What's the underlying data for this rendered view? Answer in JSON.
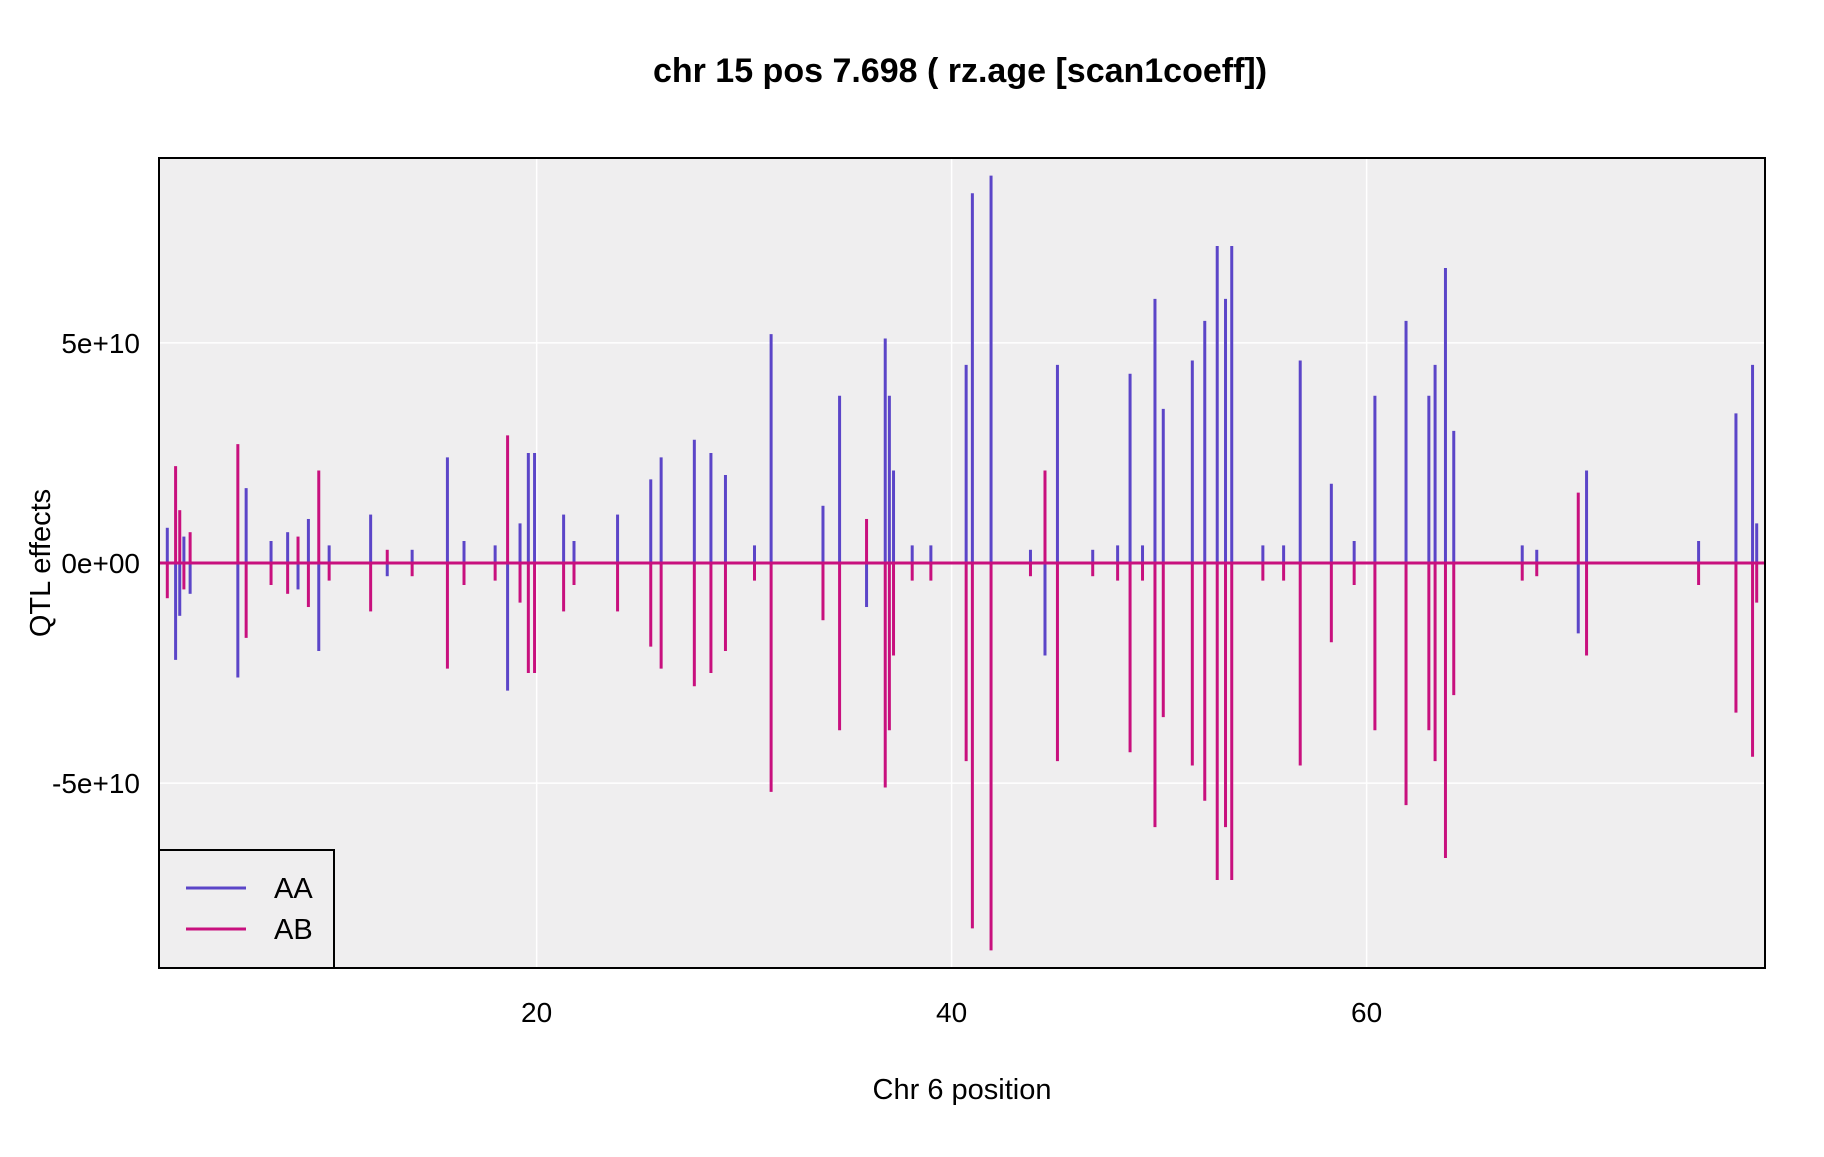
{
  "chart_data": {
    "type": "line",
    "title": "chr 15 pos 7.698 ( rz.age  [scan1coeff])",
    "xlabel": "Chr 6 position",
    "ylabel": "QTL effects",
    "xlim": [
      1.8,
      79.2
    ],
    "ylim": [
      -92000000000,
      92000000000
    ],
    "x_ticks": [
      {
        "value": 20,
        "label": "20"
      },
      {
        "value": 40,
        "label": "40"
      },
      {
        "value": 60,
        "label": "60"
      }
    ],
    "y_ticks": [
      {
        "value": 50000000000,
        "label": "5e+10"
      },
      {
        "value": 0,
        "label": "0e+00"
      },
      {
        "value": -50000000000,
        "label": "-5e+10"
      }
    ],
    "grid": true,
    "legend": {
      "position": "bottom-left"
    },
    "colors": {
      "AA": "#5b45c8",
      "AB": "#c8107e",
      "panel": "#efeeef",
      "grid": "#ffffff"
    },
    "series": [
      {
        "name": "AA",
        "spikes": [
          [
            2.2,
            8000000000.0
          ],
          [
            2.6,
            -22000000000.0
          ],
          [
            2.8,
            -12000000000.0
          ],
          [
            3.0,
            6000000000.0
          ],
          [
            3.3,
            -7000000000.0
          ],
          [
            5.6,
            -26000000000.0
          ],
          [
            6.0,
            17000000000.0
          ],
          [
            7.2,
            5000000000.0
          ],
          [
            8.0,
            7000000000.0
          ],
          [
            8.5,
            -6000000000.0
          ],
          [
            9.0,
            10000000000.0
          ],
          [
            9.5,
            -20000000000.0
          ],
          [
            10.0,
            4000000000.0
          ],
          [
            12.0,
            11000000000.0
          ],
          [
            12.8,
            -3000000000.0
          ],
          [
            14.0,
            3000000000.0
          ],
          [
            15.7,
            24000000000.0
          ],
          [
            16.5,
            5000000000.0
          ],
          [
            18.0,
            4000000000.0
          ],
          [
            18.6,
            -29000000000.0
          ],
          [
            19.2,
            9000000000.0
          ],
          [
            19.6,
            25000000000.0
          ],
          [
            19.9,
            25000000000.0
          ],
          [
            21.3,
            11000000000.0
          ],
          [
            21.8,
            5000000000.0
          ],
          [
            23.9,
            11000000000.0
          ],
          [
            25.5,
            19000000000.0
          ],
          [
            26.0,
            24000000000.0
          ],
          [
            27.6,
            28000000000.0
          ],
          [
            28.4,
            25000000000.0
          ],
          [
            29.1,
            20000000000.0
          ],
          [
            30.5,
            4000000000.0
          ],
          [
            31.3,
            52000000000.0
          ],
          [
            33.8,
            13000000000.0
          ],
          [
            34.6,
            38000000000.0
          ],
          [
            35.9,
            -10000000000.0
          ],
          [
            36.8,
            51000000000.0
          ],
          [
            37.0,
            38000000000.0
          ],
          [
            37.2,
            21000000000.0
          ],
          [
            38.1,
            4000000000.0
          ],
          [
            39.0,
            4000000000.0
          ],
          [
            40.7,
            45000000000.0
          ],
          [
            41.0,
            84000000000.0
          ],
          [
            41.9,
            88000000000.0
          ],
          [
            43.8,
            3000000000.0
          ],
          [
            44.5,
            -21000000000.0
          ],
          [
            45.1,
            45000000000.0
          ],
          [
            46.8,
            3000000000.0
          ],
          [
            48.0,
            4000000000.0
          ],
          [
            48.6,
            43000000000.0
          ],
          [
            49.2,
            4000000000.0
          ],
          [
            49.8,
            60000000000.0
          ],
          [
            50.2,
            35000000000.0
          ],
          [
            51.6,
            46000000000.0
          ],
          [
            52.2,
            55000000000.0
          ],
          [
            52.8,
            72000000000.0
          ],
          [
            53.2,
            60000000000.0
          ],
          [
            53.5,
            72000000000.0
          ],
          [
            55.0,
            4000000000.0
          ],
          [
            56.0,
            4000000000.0
          ],
          [
            56.8,
            46000000000.0
          ],
          [
            58.3,
            18000000000.0
          ],
          [
            59.4,
            5000000000.0
          ],
          [
            60.4,
            38000000000.0
          ],
          [
            61.9,
            55000000000.0
          ],
          [
            63.0,
            38000000000.0
          ],
          [
            63.3,
            45000000000.0
          ],
          [
            63.8,
            67000000000.0
          ],
          [
            64.2,
            30000000000.0
          ],
          [
            67.5,
            4000000000.0
          ],
          [
            68.2,
            3000000000.0
          ],
          [
            70.2,
            -16000000000.0
          ],
          [
            70.6,
            21000000000.0
          ],
          [
            76.0,
            5000000000.0
          ],
          [
            77.8,
            34000000000.0
          ],
          [
            78.6,
            45000000000.0
          ],
          [
            78.8,
            9000000000.0
          ]
        ]
      },
      {
        "name": "AB",
        "spikes": [
          [
            2.2,
            -8000000000.0
          ],
          [
            2.6,
            22000000000.0
          ],
          [
            2.8,
            12000000000.0
          ],
          [
            3.0,
            -6000000000.0
          ],
          [
            3.3,
            7000000000.0
          ],
          [
            5.6,
            27000000000.0
          ],
          [
            6.0,
            -17000000000.0
          ],
          [
            7.2,
            -5000000000.0
          ],
          [
            8.0,
            -7000000000.0
          ],
          [
            8.5,
            6000000000.0
          ],
          [
            9.0,
            -10000000000.0
          ],
          [
            9.5,
            21000000000.0
          ],
          [
            10.0,
            -4000000000.0
          ],
          [
            12.0,
            -11000000000.0
          ],
          [
            12.8,
            3000000000.0
          ],
          [
            14.0,
            -3000000000.0
          ],
          [
            15.7,
            -24000000000.0
          ],
          [
            16.5,
            -5000000000.0
          ],
          [
            18.0,
            -4000000000.0
          ],
          [
            18.6,
            29000000000.0
          ],
          [
            19.2,
            -9000000000.0
          ],
          [
            19.6,
            -25000000000.0
          ],
          [
            19.9,
            -25000000000.0
          ],
          [
            21.3,
            -11000000000.0
          ],
          [
            21.8,
            -5000000000.0
          ],
          [
            23.9,
            -11000000000.0
          ],
          [
            25.5,
            -19000000000.0
          ],
          [
            26.0,
            -24000000000.0
          ],
          [
            27.6,
            -28000000000.0
          ],
          [
            28.4,
            -25000000000.0
          ],
          [
            29.1,
            -20000000000.0
          ],
          [
            30.5,
            -4000000000.0
          ],
          [
            31.3,
            -52000000000.0
          ],
          [
            33.8,
            -13000000000.0
          ],
          [
            34.6,
            -38000000000.0
          ],
          [
            35.9,
            10000000000.0
          ],
          [
            36.8,
            -51000000000.0
          ],
          [
            37.0,
            -38000000000.0
          ],
          [
            37.2,
            -21000000000.0
          ],
          [
            38.1,
            -4000000000.0
          ],
          [
            39.0,
            -4000000000.0
          ],
          [
            40.7,
            -45000000000.0
          ],
          [
            41.0,
            -83000000000.0
          ],
          [
            41.9,
            -88000000000.0
          ],
          [
            43.8,
            -3000000000.0
          ],
          [
            44.5,
            21000000000.0
          ],
          [
            45.1,
            -45000000000.0
          ],
          [
            46.8,
            -3000000000.0
          ],
          [
            48.0,
            -4000000000.0
          ],
          [
            48.6,
            -43000000000.0
          ],
          [
            49.2,
            -4000000000.0
          ],
          [
            49.8,
            -60000000000.0
          ],
          [
            50.2,
            -35000000000.0
          ],
          [
            51.6,
            -46000000000.0
          ],
          [
            52.2,
            -54000000000.0
          ],
          [
            52.8,
            -72000000000.0
          ],
          [
            53.2,
            -60000000000.0
          ],
          [
            53.5,
            -72000000000.0
          ],
          [
            55.0,
            -4000000000.0
          ],
          [
            56.0,
            -4000000000.0
          ],
          [
            56.8,
            -46000000000.0
          ],
          [
            58.3,
            -18000000000.0
          ],
          [
            59.4,
            -5000000000.0
          ],
          [
            60.4,
            -38000000000.0
          ],
          [
            61.9,
            -55000000000.0
          ],
          [
            63.0,
            -38000000000.0
          ],
          [
            63.3,
            -45000000000.0
          ],
          [
            63.8,
            -67000000000.0
          ],
          [
            64.2,
            -30000000000.0
          ],
          [
            67.5,
            -4000000000.0
          ],
          [
            68.2,
            -3000000000.0
          ],
          [
            70.2,
            16000000000.0
          ],
          [
            70.6,
            -21000000000.0
          ],
          [
            76.0,
            -5000000000.0
          ],
          [
            77.8,
            -34000000000.0
          ],
          [
            78.6,
            -44000000000.0
          ],
          [
            78.8,
            -9000000000.0
          ]
        ]
      }
    ]
  }
}
